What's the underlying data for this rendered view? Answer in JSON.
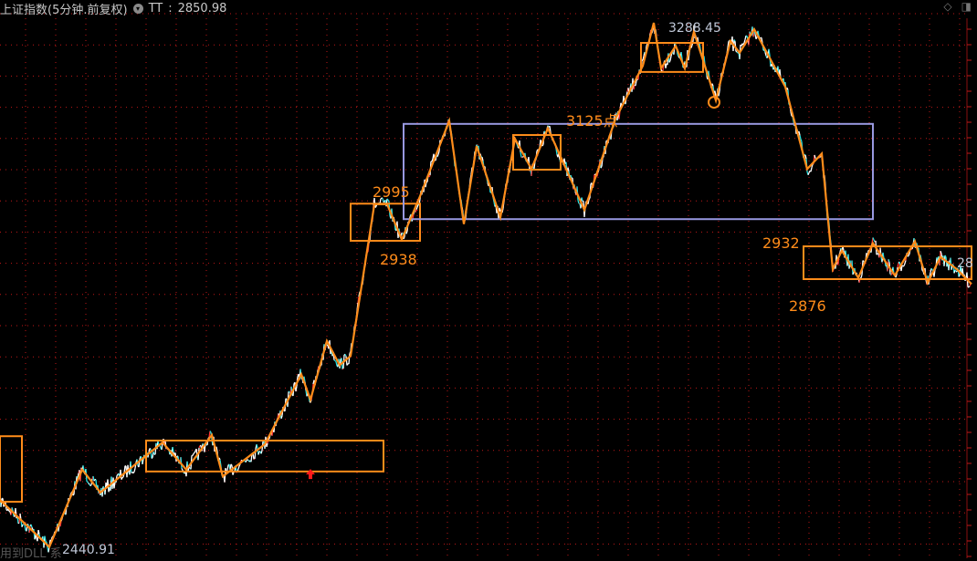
{
  "header": {
    "title": "上证指数(5分钟.前复权)",
    "indicator_name": "TT",
    "indicator_value": "2850.98",
    "menu_icon": "chevron-down-icon",
    "tool_icons": [
      "diamond-icon",
      "panel-toggle-icon"
    ]
  },
  "footer_text": "用到DLL 系",
  "colors": {
    "background": "#000000",
    "grid": "#c01818",
    "annotation": "#ff8c1a",
    "box_range": "#9898e0",
    "price_up": "#ff3030",
    "price_down": "#22e5e5",
    "price_main": "#ffffff"
  },
  "chart_data": {
    "type": "line",
    "title": "上证指数(5分钟.前复权)",
    "xlabel": "",
    "ylabel": "",
    "ylim": [
      2420,
      3310
    ],
    "grid": true,
    "zigzag": [
      [
        0,
        2517
      ],
      [
        27,
        2441
      ],
      [
        45,
        2566
      ],
      [
        55,
        2529
      ],
      [
        89,
        2610
      ],
      [
        102,
        2566
      ],
      [
        116,
        2622
      ],
      [
        122,
        2555
      ],
      [
        145,
        2607
      ],
      [
        165,
        2720
      ],
      [
        170,
        2679
      ],
      [
        179,
        2774
      ],
      [
        186,
        2735
      ],
      [
        192,
        2750
      ],
      [
        205,
        2995
      ],
      [
        212,
        2995
      ],
      [
        220,
        2938
      ],
      [
        230,
        3008
      ],
      [
        246,
        3130
      ],
      [
        254,
        2963
      ],
      [
        261,
        3089
      ],
      [
        274,
        2974
      ],
      [
        282,
        3101
      ],
      [
        291,
        3052
      ],
      [
        300,
        3118
      ],
      [
        320,
        2986
      ],
      [
        337,
        3133
      ],
      [
        352,
        3219
      ],
      [
        358,
        3288.45
      ],
      [
        362,
        3215
      ],
      [
        370,
        3251
      ],
      [
        375,
        3215
      ],
      [
        380,
        3274
      ],
      [
        392,
        3163
      ],
      [
        400,
        3259
      ],
      [
        405,
        3240
      ],
      [
        413,
        3278
      ],
      [
        430,
        3185
      ],
      [
        442,
        3052
      ],
      [
        450,
        3077
      ],
      [
        456,
        2890
      ],
      [
        461,
        2920
      ],
      [
        470,
        2876
      ],
      [
        478,
        2932
      ],
      [
        490,
        2880
      ],
      [
        501,
        2935
      ],
      [
        508,
        2868
      ],
      [
        515,
        2910
      ],
      [
        524,
        2890
      ],
      [
        532,
        2866
      ]
    ],
    "boxes": [
      {
        "bars": [
          0,
          12
        ],
        "price": [
          2514,
          2620
        ],
        "color": "#ff8c1a"
      },
      {
        "bars": [
          80,
          210
        ],
        "price": [
          2563,
          2613
        ],
        "color": "#ff8c1a"
      },
      {
        "bars": [
          192,
          230
        ],
        "price": [
          2936,
          2996
        ],
        "color": "#ff8c1a"
      },
      {
        "bars": [
          221,
          478
        ],
        "price": [
          2971,
          3125
        ],
        "color": "#9898e0"
      },
      {
        "bars": [
          281,
          307
        ],
        "price": [
          3051,
          3107
        ],
        "color": "#ff8c1a"
      },
      {
        "bars": [
          351,
          385
        ],
        "price": [
          3209,
          3256
        ],
        "color": "#ff8c1a"
      },
      {
        "bars": [
          440,
          532
        ],
        "price": [
          2874,
          2927
        ],
        "color": "#ff8c1a"
      }
    ],
    "circle_marker": {
      "bar": 391,
      "price": 3160
    },
    "up_arrow": {
      "bar": 170,
      "price": 2570
    },
    "annotations": [
      {
        "text": "2995"
      },
      {
        "text": "2938"
      },
      {
        "text": "3125点"
      },
      {
        "text": "2932"
      },
      {
        "text": "2876"
      }
    ],
    "price_labels": {
      "high": "3288.45",
      "low": "2440.91",
      "last": "28"
    }
  }
}
